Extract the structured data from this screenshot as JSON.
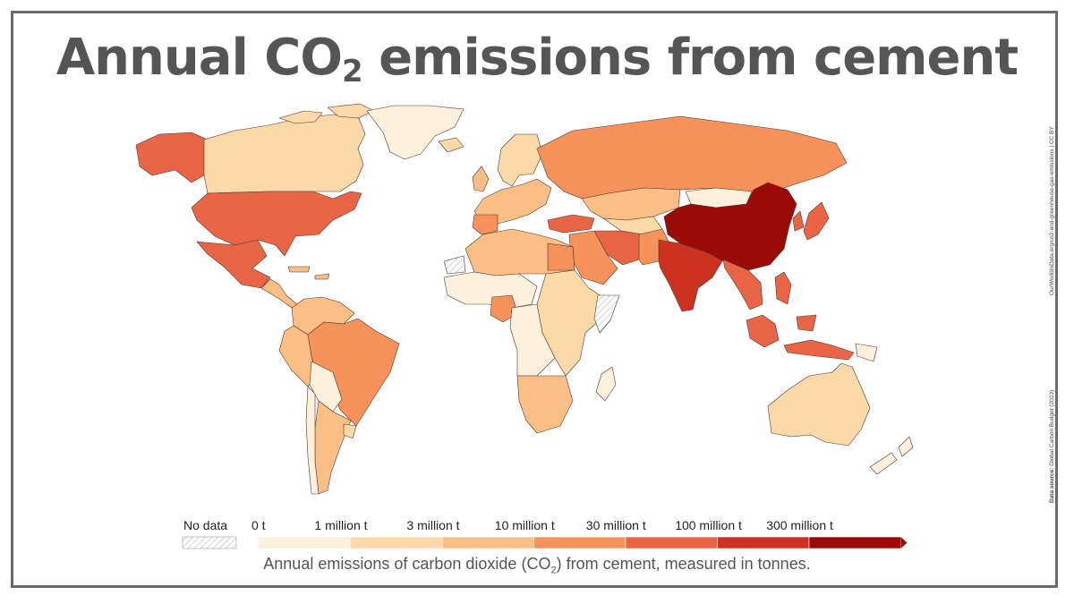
{
  "title": {
    "main": "Annual CO",
    "sub": "2",
    "rest": " emissions from cement"
  },
  "side_note": {
    "source_label": "Data source:",
    "source": "Global Carbon Budget (2023)",
    "url": "OurWorldInData.org/co2-and-greenhouse-gas-emissions",
    "license": "| CC BY"
  },
  "legend": {
    "no_data_label": "No data",
    "bins": [
      {
        "label": "0 t",
        "color": "#fdf0dc"
      },
      {
        "label": "1 million t",
        "color": "#fcd9a8"
      },
      {
        "label": "3 million t",
        "color": "#fbbf85"
      },
      {
        "label": "10 million t",
        "color": "#f7935a"
      },
      {
        "label": "30 million t",
        "color": "#ea6546"
      },
      {
        "label": "100 million t",
        "color": "#cd3221"
      },
      {
        "label": "300 million t",
        "color": "#9a0a07"
      }
    ]
  },
  "caption": {
    "pre": "Annual emissions of carbon dioxide (CO",
    "sub": "2",
    "post": ") from cement, measured in tonnes."
  }
}
